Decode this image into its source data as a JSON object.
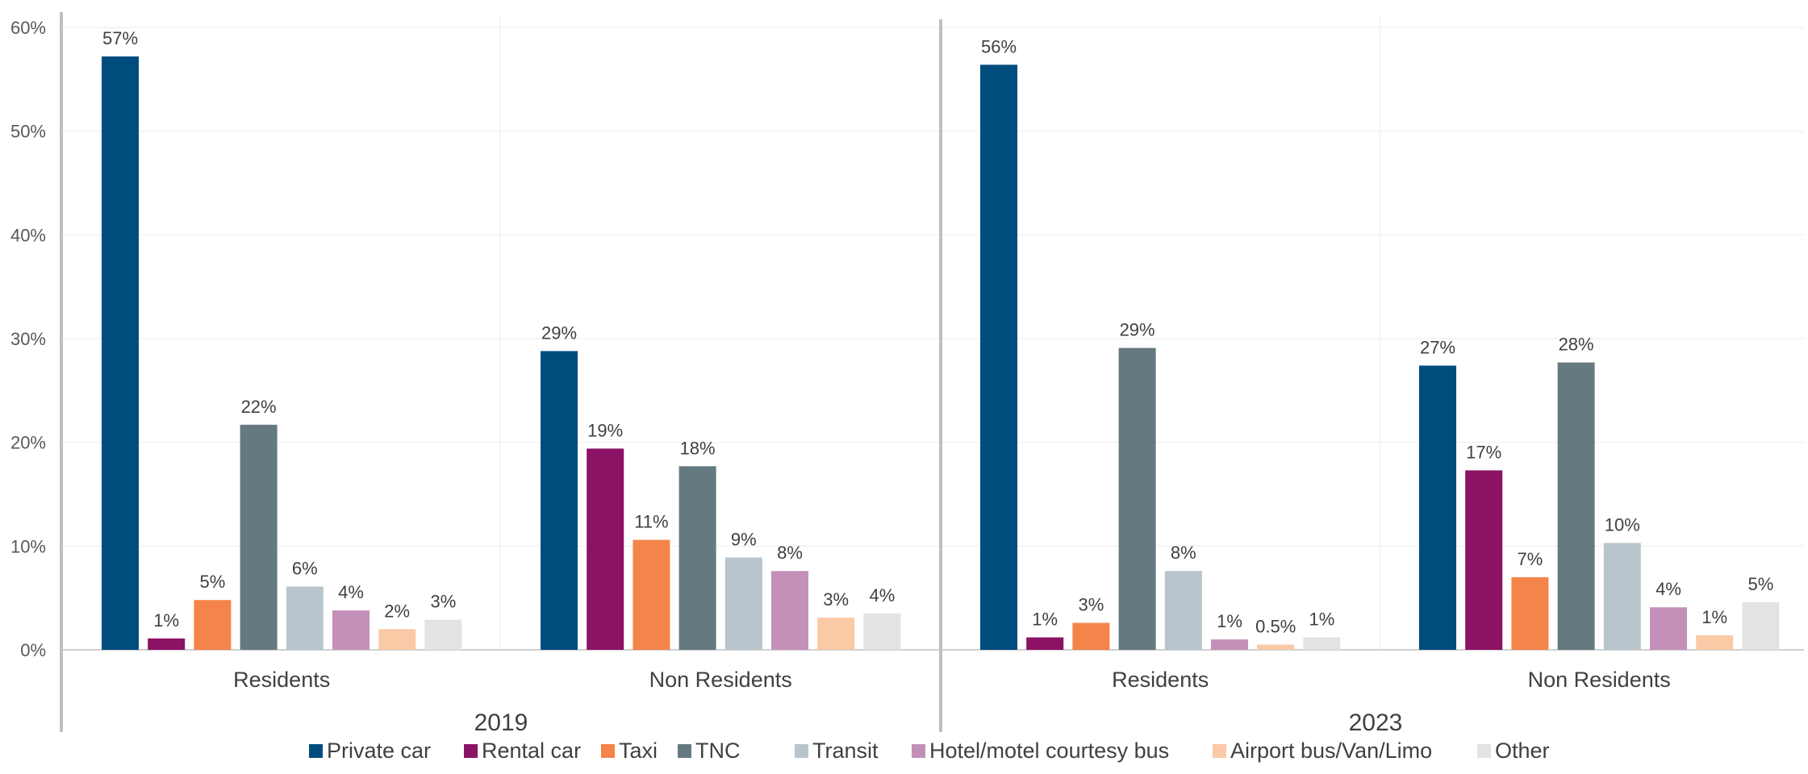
{
  "chart_data": {
    "type": "bar",
    "y_axis": {
      "ylim": [
        0,
        60
      ],
      "ticks": [
        0,
        10,
        20,
        30,
        40,
        50,
        60
      ],
      "tick_labels": [
        "0%",
        "10%",
        "20%",
        "30%",
        "40%",
        "50%",
        "60%"
      ]
    },
    "grid": true,
    "legend_position": "bottom",
    "series": [
      {
        "name": "Private car",
        "color": "#004d7d"
      },
      {
        "name": "Rental car",
        "color": "#8b1265"
      },
      {
        "name": "Taxi",
        "color": "#f5844a"
      },
      {
        "name": "TNC",
        "color": "#657981"
      },
      {
        "name": "Transit",
        "color": "#b8c5cc"
      },
      {
        "name": "Hotel/motel courtesy bus",
        "color": "#c490b9"
      },
      {
        "name": "Airport bus/Van/Limo",
        "color": "#fac9a6"
      },
      {
        "name": "Other",
        "color": "#e3e3e3"
      }
    ],
    "panels": [
      {
        "year": "2019",
        "groups": [
          {
            "label": "Residents",
            "values": [
              57.2,
              1.1,
              4.8,
              21.7,
              6.1,
              3.8,
              2.0,
              2.9
            ],
            "labels": [
              "57%",
              "1%",
              "5%",
              "22%",
              "6%",
              "4%",
              "2%",
              "3%"
            ]
          },
          {
            "label": "Non Residents",
            "values": [
              28.8,
              19.4,
              10.6,
              17.7,
              8.9,
              7.6,
              3.1,
              3.5
            ],
            "labels": [
              "29%",
              "19%",
              "11%",
              "18%",
              "9%",
              "8%",
              "3%",
              "4%"
            ]
          }
        ]
      },
      {
        "year": "2023",
        "groups": [
          {
            "label": "Residents",
            "values": [
              56.4,
              1.2,
              2.6,
              29.1,
              7.6,
              1.0,
              0.5,
              1.2
            ],
            "labels": [
              "56%",
              "1%",
              "3%",
              "29%",
              "8%",
              "1%",
              "0.5%",
              "1%"
            ]
          },
          {
            "label": "Non Residents",
            "values": [
              27.4,
              17.3,
              7.0,
              27.7,
              10.3,
              4.1,
              1.4,
              4.6
            ],
            "labels": [
              "27%",
              "17%",
              "7%",
              "28%",
              "10%",
              "4%",
              "1%",
              "5%"
            ]
          }
        ]
      }
    ]
  }
}
